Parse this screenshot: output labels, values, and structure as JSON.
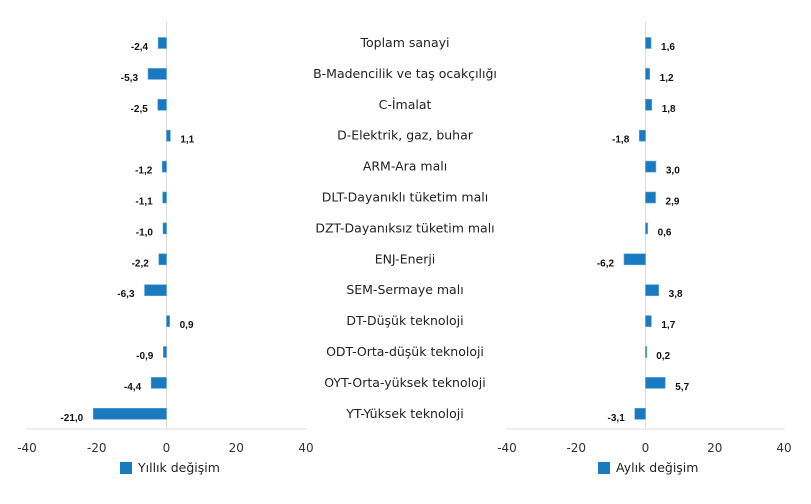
{
  "chart_data": [
    {
      "type": "bar",
      "orientation": "horizontal",
      "legend": "Yıllık değişim",
      "legend_placement": "bottom",
      "color": "#1a7abf",
      "categories": [
        "Toplam sanayi",
        "B-Madencilik ve taş ocakçılığı",
        "C-İmalat",
        "D-Elektrik, gaz, buhar",
        "ARM-Ara malı",
        "DLT-Dayanıklı tüketim malı",
        "DZT-Dayanıksız tüketim malı",
        "ENJ-Enerji",
        "SEM-Sermaye malı",
        "DT-Düşük teknoloji",
        "ODT-Orta-düşük teknoloji",
        "OYT-Orta-yüksek teknoloji",
        "YT-Yüksek teknoloji"
      ],
      "values": [
        -2.4,
        -5.3,
        -2.5,
        1.1,
        -1.2,
        -1.1,
        -1.0,
        -2.2,
        -6.3,
        0.9,
        -0.9,
        -4.4,
        -21.0
      ],
      "value_labels": [
        "-2,4",
        "-5,3",
        "-2,5",
        "1,1",
        "-1,2",
        "-1,1",
        "-1,0",
        "-2,2",
        "-6,3",
        "0,9",
        "-0,9",
        "-4,4",
        "-21,0"
      ],
      "xlim": [
        -40,
        40
      ],
      "xticks": [
        -40,
        -20,
        0,
        20,
        40
      ],
      "xtick_labels": [
        "-40",
        "-20",
        "0",
        "20",
        "40"
      ],
      "grid": false
    },
    {
      "type": "bar",
      "orientation": "horizontal",
      "legend": "Aylık değişim",
      "legend_placement": "bottom",
      "color": "#1a7abf",
      "categories": [
        "Toplam sanayi",
        "B-Madencilik ve taş ocakçılığı",
        "C-İmalat",
        "D-Elektrik, gaz, buhar",
        "ARM-Ara malı",
        "DLT-Dayanıklı tüketim malı",
        "DZT-Dayanıksız tüketim malı",
        "ENJ-Enerji",
        "SEM-Sermaye malı",
        "DT-Düşük teknoloji",
        "ODT-Orta-düşük teknoloji",
        "OYT-Orta-yüksek teknoloji",
        "YT-Yüksek teknoloji"
      ],
      "values": [
        1.6,
        1.2,
        1.8,
        -1.8,
        3.0,
        2.9,
        0.6,
        -6.2,
        3.8,
        1.7,
        0.2,
        5.7,
        -3.1
      ],
      "value_labels": [
        "1,6",
        "1,2",
        "1,8",
        "-1,8",
        "3,0",
        "2,9",
        "0,6",
        "-6,2",
        "3,8",
        "1,7",
        "0,2",
        "5,7",
        "-3,1"
      ],
      "xlim": [
        -40,
        40
      ],
      "xticks": [
        -40,
        -20,
        0,
        20,
        40
      ],
      "xtick_labels": [
        "-40",
        "-20",
        "0",
        "20",
        "40"
      ],
      "grid": false
    }
  ]
}
